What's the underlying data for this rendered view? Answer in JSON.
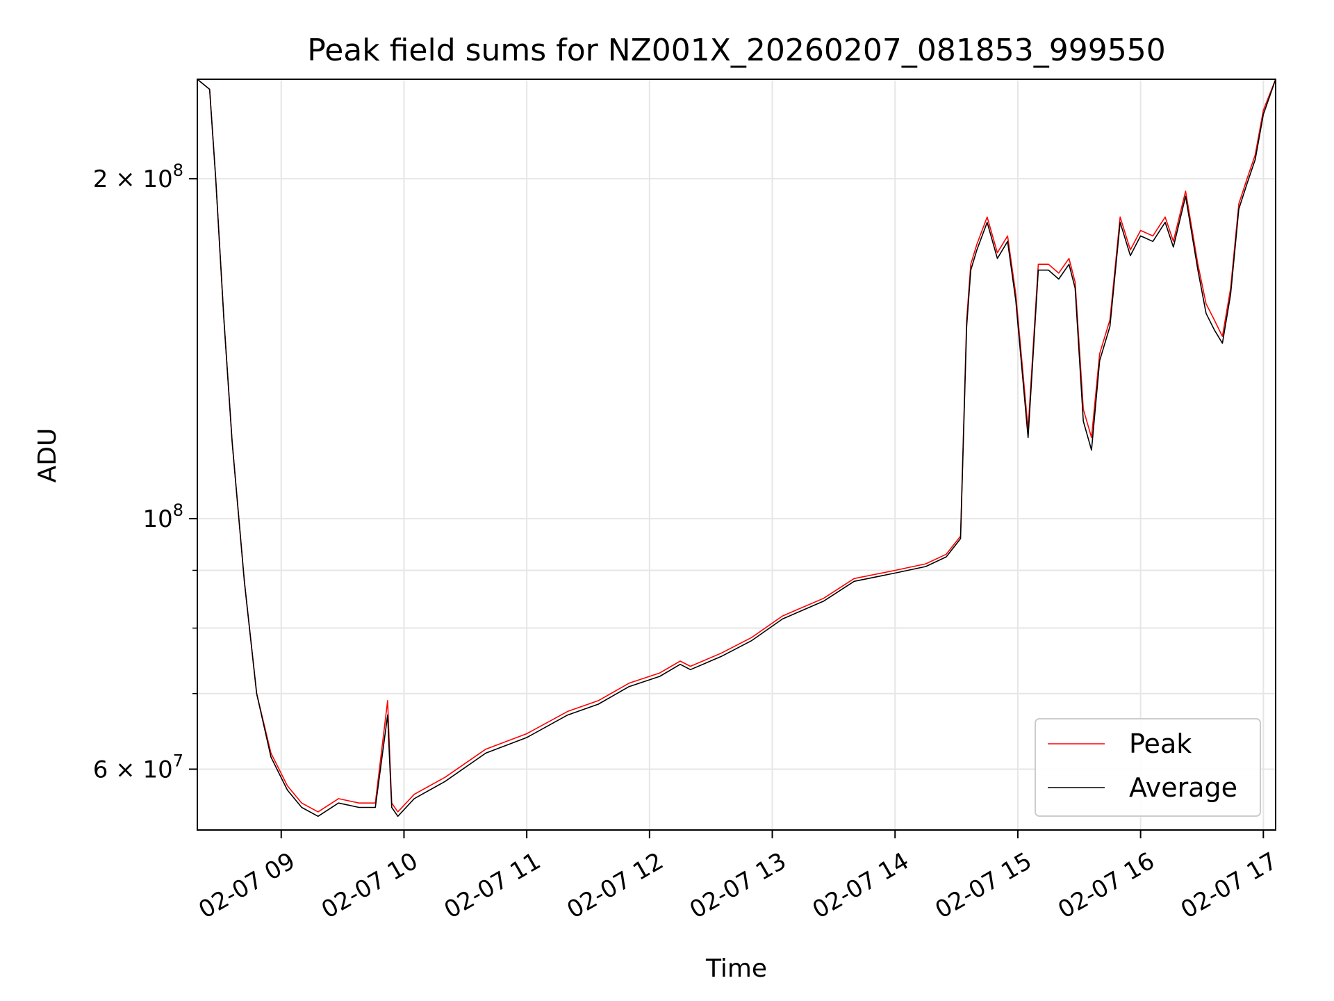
{
  "chart_data": {
    "type": "line",
    "title": "Peak field sums for NZ001X_20260207_081853_999550",
    "xlabel": "Time",
    "ylabel": "ADU",
    "y_scale": "log",
    "xlim": [
      "02-07 08:19",
      "02-07 17:06"
    ],
    "ylim": [
      53000000,
      245000000
    ],
    "grid": true,
    "legend_position": "lower-right",
    "x_ticks": [
      "02-07 09",
      "02-07 10",
      "02-07 11",
      "02-07 12",
      "02-07 13",
      "02-07 14",
      "02-07 15",
      "02-07 16",
      "02-07 17"
    ],
    "y_major_ticks": [
      {
        "value": 60000000,
        "label": "6 × 10^7",
        "mantissa": "6",
        "exponent": "7"
      },
      {
        "value": 100000000,
        "label": "10^8",
        "mantissa": "",
        "exponent": "8"
      },
      {
        "value": 200000000,
        "label": "2 × 10^8",
        "mantissa": "2",
        "exponent": "8"
      }
    ],
    "y_minor_ticks": [
      70000000,
      80000000,
      90000000
    ],
    "series": [
      {
        "name": "Peak",
        "color": "#ff0000",
        "x": [
          "02-07 08:19",
          "02-07 08:25",
          "02-07 08:28",
          "02-07 08:32",
          "02-07 08:36",
          "02-07 08:42",
          "02-07 08:48",
          "02-07 08:55",
          "02-07 09:03",
          "02-07 09:10",
          "02-07 09:18",
          "02-07 09:28",
          "02-07 09:38",
          "02-07 09:46",
          "02-07 09:52",
          "02-07 09:53",
          "02-07 09:54",
          "02-07 09:57",
          "02-07 10:05",
          "02-07 10:20",
          "02-07 10:40",
          "02-07 11:00",
          "02-07 11:20",
          "02-07 11:35",
          "02-07 11:50",
          "02-07 12:05",
          "02-07 12:15",
          "02-07 12:20",
          "02-07 12:35",
          "02-07 12:50",
          "02-07 13:05",
          "02-07 13:25",
          "02-07 13:40",
          "02-07 14:00",
          "02-07 14:15",
          "02-07 14:25",
          "02-07 14:32",
          "02-07 14:35",
          "02-07 14:37",
          "02-07 14:40",
          "02-07 14:45",
          "02-07 14:50",
          "02-07 14:55",
          "02-07 14:59",
          "02-07 15:05",
          "02-07 15:10",
          "02-07 15:15",
          "02-07 15:20",
          "02-07 15:25",
          "02-07 15:28",
          "02-07 15:32",
          "02-07 15:36",
          "02-07 15:40",
          "02-07 15:45",
          "02-07 15:50",
          "02-07 15:55",
          "02-07 16:00",
          "02-07 16:06",
          "02-07 16:12",
          "02-07 16:16",
          "02-07 16:22",
          "02-07 16:28",
          "02-07 16:32",
          "02-07 16:36",
          "02-07 16:40",
          "02-07 16:44",
          "02-07 16:48",
          "02-07 16:52",
          "02-07 16:56",
          "02-07 17:00",
          "02-07 17:06"
        ],
        "y": [
          245000000,
          240000000,
          200000000,
          150000000,
          117000000,
          88000000,
          70000000,
          62000000,
          58000000,
          56000000,
          55000000,
          56500000,
          56000000,
          56000000,
          69000000,
          62000000,
          56000000,
          55000000,
          57000000,
          59000000,
          62500000,
          64500000,
          67500000,
          69000000,
          71500000,
          73000000,
          74800000,
          74000000,
          76000000,
          78500000,
          82000000,
          85000000,
          88500000,
          90000000,
          91200000,
          93000000,
          96500000,
          150000000,
          168000000,
          175000000,
          185000000,
          172000000,
          178000000,
          158000000,
          120000000,
          168000000,
          168000000,
          165000000,
          170000000,
          162000000,
          125000000,
          118000000,
          140000000,
          150000000,
          185000000,
          173000000,
          180000000,
          178000000,
          185000000,
          176000000,
          195000000,
          168000000,
          155000000,
          150000000,
          145000000,
          160000000,
          190000000,
          200000000,
          210000000,
          230000000,
          245000000
        ]
      },
      {
        "name": "Average",
        "color": "#000000",
        "x": [
          "02-07 08:19",
          "02-07 08:25",
          "02-07 08:28",
          "02-07 08:32",
          "02-07 08:36",
          "02-07 08:42",
          "02-07 08:48",
          "02-07 08:55",
          "02-07 09:03",
          "02-07 09:10",
          "02-07 09:18",
          "02-07 09:28",
          "02-07 09:38",
          "02-07 09:46",
          "02-07 09:52",
          "02-07 09:53",
          "02-07 09:54",
          "02-07 09:57",
          "02-07 10:05",
          "02-07 10:20",
          "02-07 10:40",
          "02-07 11:00",
          "02-07 11:20",
          "02-07 11:35",
          "02-07 11:50",
          "02-07 12:05",
          "02-07 12:15",
          "02-07 12:20",
          "02-07 12:35",
          "02-07 12:50",
          "02-07 13:05",
          "02-07 13:25",
          "02-07 13:40",
          "02-07 14:00",
          "02-07 14:15",
          "02-07 14:25",
          "02-07 14:32",
          "02-07 14:35",
          "02-07 14:37",
          "02-07 14:40",
          "02-07 14:45",
          "02-07 14:50",
          "02-07 14:55",
          "02-07 14:59",
          "02-07 15:05",
          "02-07 15:10",
          "02-07 15:15",
          "02-07 15:20",
          "02-07 15:25",
          "02-07 15:28",
          "02-07 15:32",
          "02-07 15:36",
          "02-07 15:40",
          "02-07 15:45",
          "02-07 15:50",
          "02-07 15:55",
          "02-07 16:00",
          "02-07 16:06",
          "02-07 16:12",
          "02-07 16:16",
          "02-07 16:22",
          "02-07 16:28",
          "02-07 16:32",
          "02-07 16:36",
          "02-07 16:40",
          "02-07 16:44",
          "02-07 16:48",
          "02-07 16:52",
          "02-07 16:56",
          "02-07 17:00",
          "02-07 17:06"
        ],
        "y": [
          245000000,
          240000000,
          200000000,
          150000000,
          117000000,
          88000000,
          70000000,
          61500000,
          57500000,
          55500000,
          54500000,
          56000000,
          55500000,
          55500000,
          67000000,
          61000000,
          55500000,
          54500000,
          56500000,
          58500000,
          62000000,
          64000000,
          67000000,
          68500000,
          71000000,
          72500000,
          74300000,
          73500000,
          75500000,
          78000000,
          81500000,
          84500000,
          88000000,
          89500000,
          90700000,
          92500000,
          96000000,
          148000000,
          166000000,
          173000000,
          183000000,
          170000000,
          176000000,
          156000000,
          118000000,
          166000000,
          166000000,
          163000000,
          168000000,
          160000000,
          122000000,
          115000000,
          138000000,
          148000000,
          183000000,
          171000000,
          178000000,
          176000000,
          183000000,
          174000000,
          193000000,
          166000000,
          152000000,
          147000000,
          143000000,
          158000000,
          188000000,
          198000000,
          208000000,
          228000000,
          245000000
        ]
      }
    ]
  }
}
